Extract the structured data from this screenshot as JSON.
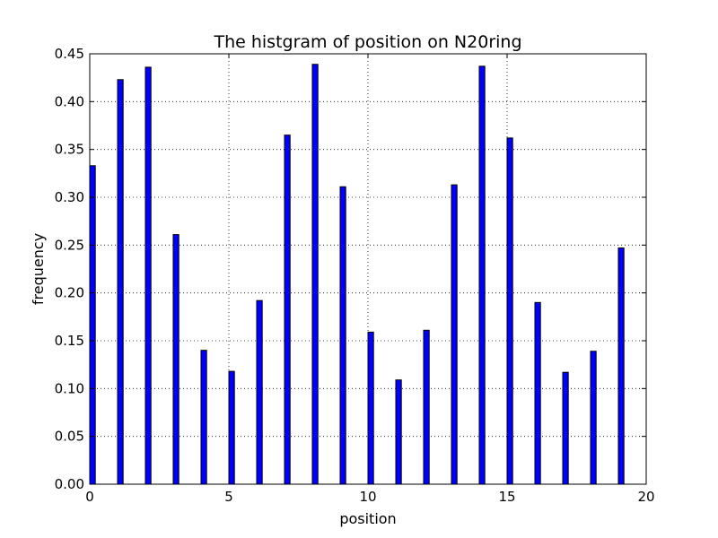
{
  "chart_data": {
    "type": "bar",
    "title": "The histgram of position on N20ring",
    "xlabel": "position",
    "ylabel": "frequency",
    "xlim": [
      0,
      20
    ],
    "ylim": [
      0,
      0.45
    ],
    "grid": true,
    "bar_color": "#0000ff",
    "x": [
      0,
      1,
      2,
      3,
      4,
      5,
      6,
      7,
      8,
      9,
      10,
      11,
      12,
      13,
      14,
      15,
      16,
      17,
      18,
      19
    ],
    "values": [
      0.333,
      0.423,
      0.436,
      0.261,
      0.14,
      0.118,
      0.192,
      0.365,
      0.439,
      0.311,
      0.159,
      0.109,
      0.161,
      0.313,
      0.437,
      0.362,
      0.19,
      0.117,
      0.139,
      0.247
    ],
    "xticks": [
      "0",
      "5",
      "10",
      "15",
      "20"
    ],
    "yticks": [
      "0.00",
      "0.05",
      "0.10",
      "0.15",
      "0.20",
      "0.25",
      "0.30",
      "0.35",
      "0.40",
      "0.45"
    ]
  }
}
